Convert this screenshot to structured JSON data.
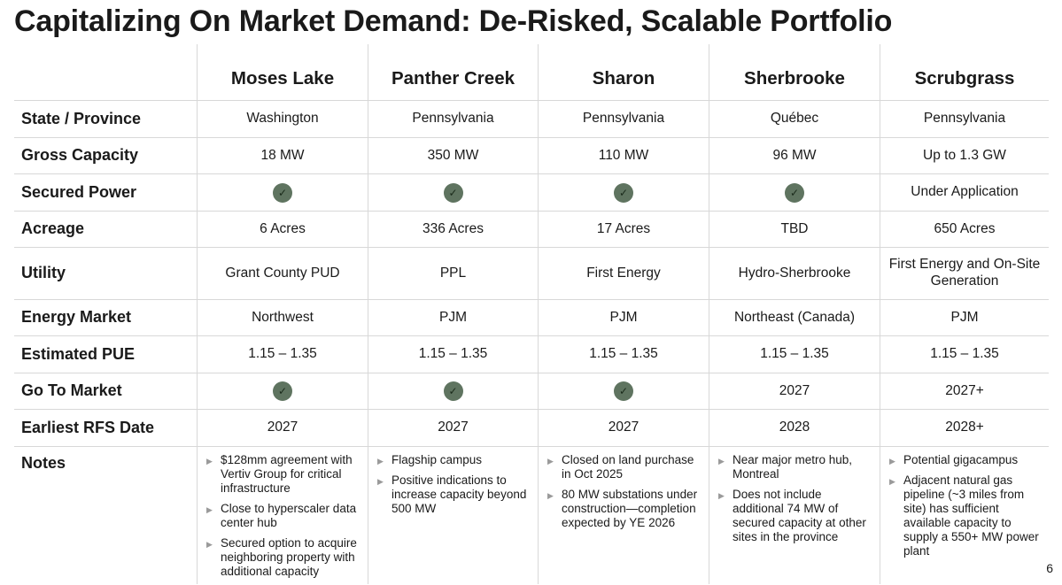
{
  "title": "Capitalizing On Market Demand: De-Risked, Scalable Portfolio",
  "page_number": "6",
  "colors": {
    "check_fill": "#5f7460",
    "grid_line": "#d8d8d8"
  },
  "columns": [
    "Moses Lake",
    "Panther Creek",
    "Sharon",
    "Sherbrooke",
    "Scrubgrass"
  ],
  "rows": [
    {
      "label": "State / Province",
      "values": [
        "Washington",
        "Pennsylvania",
        "Pennsylvania",
        "Québec",
        "Pennsylvania"
      ]
    },
    {
      "label": "Gross Capacity",
      "values": [
        "18 MW",
        "350 MW",
        "110 MW",
        "96 MW",
        "Up to 1.3 GW"
      ]
    },
    {
      "label": "Secured Power",
      "values": [
        "check",
        "check",
        "check",
        "check",
        "Under Application"
      ]
    },
    {
      "label": "Acreage",
      "values": [
        "6 Acres",
        "336 Acres",
        "17 Acres",
        "TBD",
        "650 Acres"
      ]
    },
    {
      "label": "Utility",
      "values": [
        "Grant County PUD",
        "PPL",
        "First Energy",
        "Hydro-Sherbrooke",
        "First Energy and On-Site Generation"
      ]
    },
    {
      "label": "Energy Market",
      "values": [
        "Northwest",
        "PJM",
        "PJM",
        "Northeast (Canada)",
        "PJM"
      ]
    },
    {
      "label": "Estimated PUE",
      "values": [
        "1.15 – 1.35",
        "1.15 – 1.35",
        "1.15 – 1.35",
        "1.15 – 1.35",
        "1.15 – 1.35"
      ]
    },
    {
      "label": "Go To Market",
      "values": [
        "check",
        "check",
        "check",
        "2027",
        "2027+"
      ]
    },
    {
      "label": "Earliest RFS Date",
      "values": [
        "2027",
        "2027",
        "2027",
        "2028",
        "2028+"
      ]
    }
  ],
  "notes": {
    "label": "Notes",
    "columns": [
      [
        "$128mm agreement with Vertiv Group for critical infrastructure",
        "Close to hyperscaler data center hub",
        "Secured option to acquire neighboring property with additional capacity"
      ],
      [
        "Flagship campus",
        "Positive indications to increase capacity beyond 500 MW"
      ],
      [
        "Closed on land purchase in Oct 2025",
        "80 MW substations under construction—completion expected by YE 2026"
      ],
      [
        "Near major metro hub, Montreal",
        "Does not include additional 74 MW of secured capacity at other sites in the province"
      ],
      [
        "Potential gigacampus",
        "Adjacent natural gas pipeline (~3 miles from site) has sufficient available capacity to supply a 550+ MW power plant"
      ]
    ]
  }
}
